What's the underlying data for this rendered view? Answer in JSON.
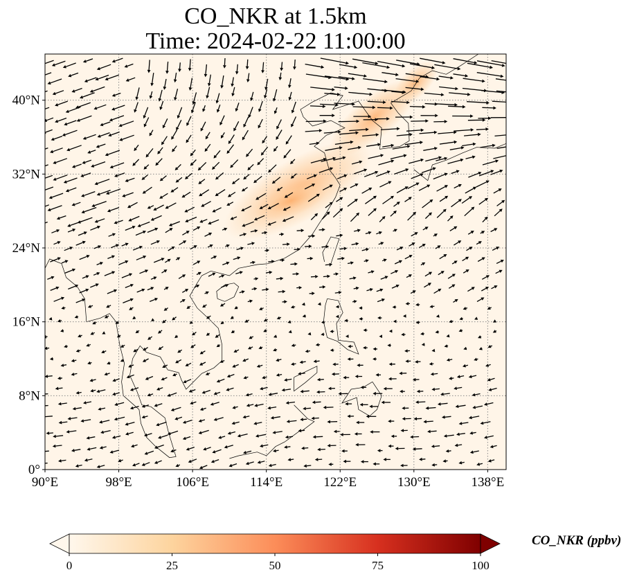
{
  "title_line1": "CO_NKR at 1.5km",
  "title_line2": "Time: 2024-02-22 11:00:00",
  "map": {
    "lon_range": [
      90,
      140
    ],
    "lat_range": [
      0,
      45
    ],
    "lon_ticks": [
      {
        "value": 90,
        "label": "90°E"
      },
      {
        "value": 98,
        "label": "98°E"
      },
      {
        "value": 106,
        "label": "106°E"
      },
      {
        "value": 114,
        "label": "114°E"
      },
      {
        "value": 122,
        "label": "122°E"
      },
      {
        "value": 130,
        "label": "130°E"
      },
      {
        "value": 138,
        "label": "138°E"
      }
    ],
    "lat_ticks": [
      {
        "value": 0,
        "label": "0°"
      },
      {
        "value": 8,
        "label": "8°N"
      },
      {
        "value": 16,
        "label": "16°N"
      },
      {
        "value": 24,
        "label": "24°N"
      },
      {
        "value": 32,
        "label": "32°N"
      },
      {
        "value": 40,
        "label": "40°N"
      }
    ],
    "gridlines": true,
    "vector_field": "wind"
  },
  "colorbar": {
    "label": "CO_NKR (ppbv)",
    "min": 0,
    "max": 100,
    "ticks": [
      {
        "value": 0,
        "label": "0"
      },
      {
        "value": 25,
        "label": "25"
      },
      {
        "value": 50,
        "label": "50"
      },
      {
        "value": 75,
        "label": "75"
      },
      {
        "value": 100,
        "label": "100"
      }
    ],
    "colormap": "OrRd",
    "extend": "both"
  },
  "colors": {
    "background_field": "#fff5e8",
    "plume": "#fdd0a2",
    "plume_core": "#fdae6b",
    "arrows": "#000000",
    "coastline": "#000000",
    "grid": "#888888"
  }
}
